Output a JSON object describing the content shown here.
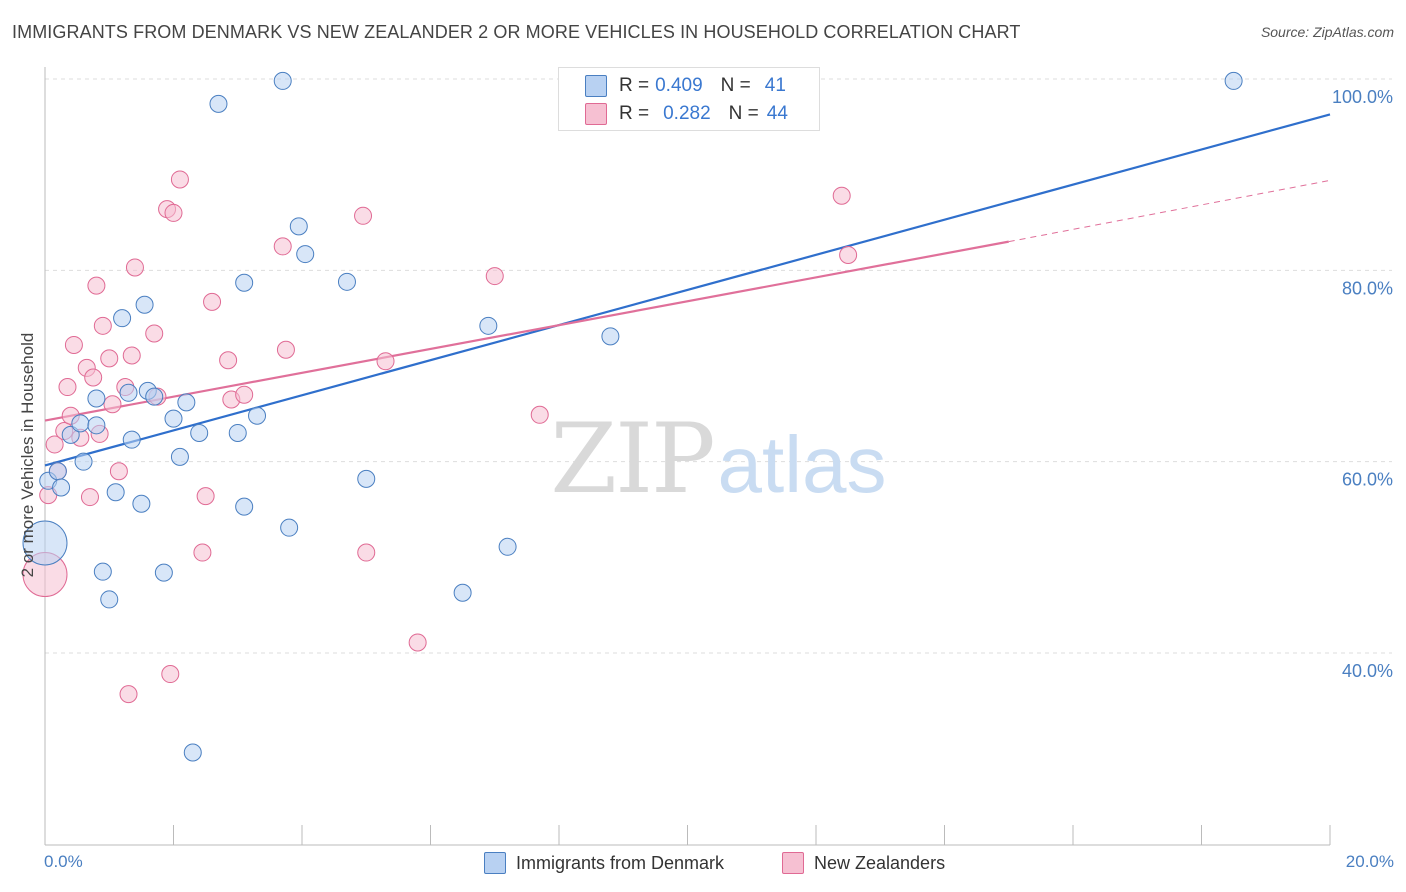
{
  "title": "IMMIGRANTS FROM DENMARK VS NEW ZEALANDER 2 OR MORE VEHICLES IN HOUSEHOLD CORRELATION CHART",
  "source": "Source: ZipAtlas.com",
  "watermark": {
    "zip": "ZIP",
    "atlas": "atlas"
  },
  "colors": {
    "blue": "#4a7fc1",
    "blue_fill": "#b8d1f2",
    "blue_line": "#2f6fcc",
    "pink": "#e06a94",
    "pink_fill": "#f6c0d2",
    "pink_line": "#e0709a",
    "grid": "#dddddd",
    "axis_text": "#4a7fc1"
  },
  "legend_top": {
    "rows": [
      {
        "r_label": "R =",
        "r_value": "0.409",
        "n_label": "N =",
        "n_value": "41"
      },
      {
        "r_label": "R =",
        "r_value": "0.282",
        "n_label": "N =",
        "n_value": "44"
      }
    ]
  },
  "chart_data": {
    "type": "scatter",
    "title": "IMMIGRANTS FROM DENMARK VS NEW ZEALANDER 2 OR MORE VEHICLES IN HOUSEHOLD CORRELATION CHART",
    "xlabel": "",
    "ylabel": "2 or more Vehicles in Household",
    "xlim": [
      0,
      20
    ],
    "ylim": [
      20,
      102
    ],
    "x_tick_labels": [
      "0.0%",
      "20.0%"
    ],
    "y_ticks": [
      40,
      60,
      80,
      100
    ],
    "y_tick_labels": [
      "40.0%",
      "60.0%",
      "80.0%",
      "100.0%"
    ],
    "grid": true,
    "legend_position": "bottom",
    "series": [
      {
        "name": "Immigrants from Denmark",
        "r": 0.409,
        "n": 41,
        "trend": {
          "x": [
            0,
            20
          ],
          "y": [
            59.6,
            96.3
          ]
        },
        "points": [
          {
            "x": 0.0,
            "y": 51.5,
            "big": true
          },
          {
            "x": 0.05,
            "y": 58.0
          },
          {
            "x": 0.2,
            "y": 59.0
          },
          {
            "x": 0.25,
            "y": 57.3
          },
          {
            "x": 0.4,
            "y": 62.8
          },
          {
            "x": 0.55,
            "y": 64.0
          },
          {
            "x": 0.6,
            "y": 60.0
          },
          {
            "x": 0.8,
            "y": 63.8
          },
          {
            "x": 0.8,
            "y": 66.6
          },
          {
            "x": 0.9,
            "y": 48.5
          },
          {
            "x": 1.0,
            "y": 45.6
          },
          {
            "x": 1.1,
            "y": 56.8
          },
          {
            "x": 1.2,
            "y": 75.0
          },
          {
            "x": 1.3,
            "y": 67.2
          },
          {
            "x": 1.35,
            "y": 62.3
          },
          {
            "x": 1.5,
            "y": 55.6
          },
          {
            "x": 1.55,
            "y": 76.4
          },
          {
            "x": 1.6,
            "y": 67.4
          },
          {
            "x": 1.7,
            "y": 66.8
          },
          {
            "x": 1.85,
            "y": 48.4
          },
          {
            "x": 2.0,
            "y": 64.5
          },
          {
            "x": 2.1,
            "y": 60.5
          },
          {
            "x": 2.2,
            "y": 66.2
          },
          {
            "x": 2.4,
            "y": 63.0
          },
          {
            "x": 2.3,
            "y": 29.6
          },
          {
            "x": 2.7,
            "y": 97.4
          },
          {
            "x": 3.0,
            "y": 63.0
          },
          {
            "x": 3.1,
            "y": 78.7
          },
          {
            "x": 3.1,
            "y": 55.3
          },
          {
            "x": 3.3,
            "y": 64.8
          },
          {
            "x": 3.7,
            "y": 99.8
          },
          {
            "x": 3.8,
            "y": 53.1
          },
          {
            "x": 3.95,
            "y": 84.6
          },
          {
            "x": 4.05,
            "y": 81.7
          },
          {
            "x": 4.7,
            "y": 78.8
          },
          {
            "x": 5.0,
            "y": 58.2
          },
          {
            "x": 6.5,
            "y": 46.3
          },
          {
            "x": 6.9,
            "y": 74.2
          },
          {
            "x": 7.2,
            "y": 51.1
          },
          {
            "x": 8.8,
            "y": 73.1
          },
          {
            "x": 18.5,
            "y": 99.8
          }
        ]
      },
      {
        "name": "New Zealanders",
        "r": 0.282,
        "n": 44,
        "trend": {
          "x": [
            0,
            15.0
          ],
          "y": [
            64.3,
            83.0
          ]
        },
        "trend_dashed": {
          "x": [
            15.0,
            20
          ],
          "y": [
            83.0,
            89.4
          ]
        },
        "points": [
          {
            "x": 0.0,
            "y": 48.2,
            "big": true
          },
          {
            "x": 0.05,
            "y": 56.5
          },
          {
            "x": 0.15,
            "y": 61.8
          },
          {
            "x": 0.2,
            "y": 59.0
          },
          {
            "x": 0.3,
            "y": 63.2
          },
          {
            "x": 0.35,
            "y": 67.8
          },
          {
            "x": 0.4,
            "y": 64.8
          },
          {
            "x": 0.45,
            "y": 72.2
          },
          {
            "x": 0.55,
            "y": 62.5
          },
          {
            "x": 0.65,
            "y": 69.8
          },
          {
            "x": 0.7,
            "y": 56.3
          },
          {
            "x": 0.75,
            "y": 68.8
          },
          {
            "x": 0.8,
            "y": 78.4
          },
          {
            "x": 0.85,
            "y": 62.9
          },
          {
            "x": 0.9,
            "y": 74.2
          },
          {
            "x": 1.0,
            "y": 70.8
          },
          {
            "x": 1.05,
            "y": 66.0
          },
          {
            "x": 1.15,
            "y": 59.0
          },
          {
            "x": 1.25,
            "y": 67.8
          },
          {
            "x": 1.3,
            "y": 35.7
          },
          {
            "x": 1.35,
            "y": 71.1
          },
          {
            "x": 1.4,
            "y": 80.3
          },
          {
            "x": 1.7,
            "y": 73.4
          },
          {
            "x": 1.75,
            "y": 66.8
          },
          {
            "x": 1.9,
            "y": 86.4
          },
          {
            "x": 1.95,
            "y": 37.8
          },
          {
            "x": 2.0,
            "y": 86.0
          },
          {
            "x": 2.1,
            "y": 89.5
          },
          {
            "x": 2.45,
            "y": 50.5
          },
          {
            "x": 2.5,
            "y": 56.4
          },
          {
            "x": 2.6,
            "y": 76.7
          },
          {
            "x": 2.85,
            "y": 70.6
          },
          {
            "x": 2.9,
            "y": 66.5
          },
          {
            "x": 3.1,
            "y": 67.0
          },
          {
            "x": 3.7,
            "y": 82.5
          },
          {
            "x": 3.75,
            "y": 71.7
          },
          {
            "x": 4.95,
            "y": 85.7
          },
          {
            "x": 5.0,
            "y": 50.5
          },
          {
            "x": 5.3,
            "y": 70.5
          },
          {
            "x": 5.8,
            "y": 41.1
          },
          {
            "x": 7.0,
            "y": 79.4
          },
          {
            "x": 7.7,
            "y": 64.9
          },
          {
            "x": 12.4,
            "y": 87.8
          },
          {
            "x": 12.5,
            "y": 81.6
          }
        ]
      }
    ]
  }
}
